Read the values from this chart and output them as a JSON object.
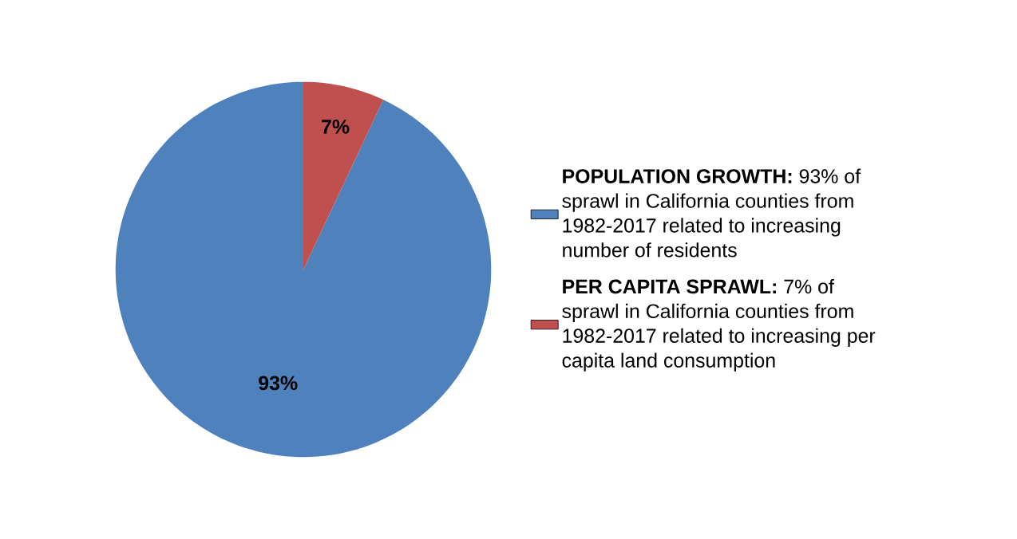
{
  "chart_data": {
    "type": "pie",
    "categories": [
      "**POPULATION GROWTH:** 93% of sprawl in California counties from 1982-2017 related to increasing number of residents",
      "**PER CAPITA SPRAWL:** 7% of sprawl in California counties from 1982-2017 related to increasing per capita land consumption"
    ],
    "values": [
      93,
      7
    ],
    "colors": [
      "#4f81bd",
      "#c0504d"
    ],
    "value_labels": [
      "93%",
      "7%"
    ],
    "legend": "right"
  }
}
